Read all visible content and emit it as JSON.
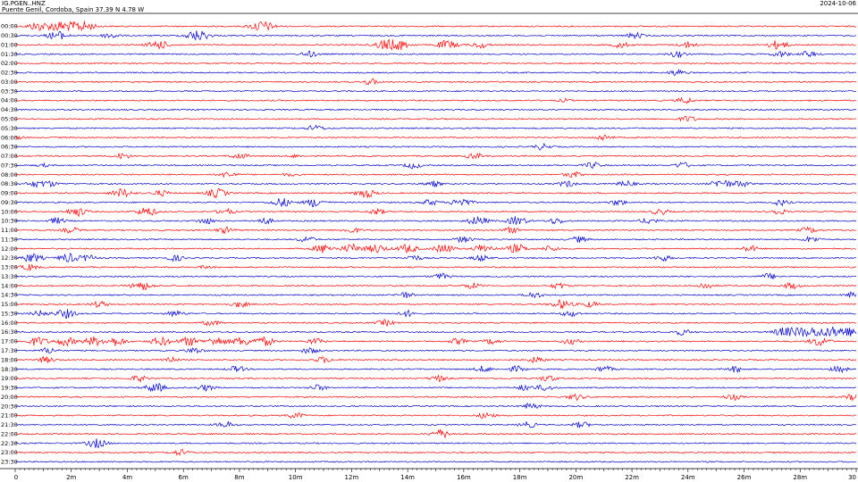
{
  "header": {
    "station": "IG.PGEN..HNZ",
    "location": "Puente Genil, Cordoba, Spain  37.39 N 4.78 W",
    "date": "2024-10-06"
  },
  "chart_data": {
    "type": "line",
    "title": "IG.PGEN..HNZ",
    "xlabel": "",
    "ylabel": "",
    "x_unit": "minutes",
    "xlim": [
      0,
      30
    ],
    "x_ticks": [
      "0",
      "2m",
      "4m",
      "6m",
      "8m",
      "10m",
      "12m",
      "14m",
      "16m",
      "18m",
      "20m",
      "22m",
      "24m",
      "26m",
      "28m",
      "30"
    ],
    "row_labels": [
      "00:00",
      "00:30",
      "01:00",
      "01:30",
      "02:00",
      "02:30",
      "03:00",
      "03:30",
      "04:00",
      "04:30",
      "05:00",
      "05:30",
      "06:00",
      "06:30",
      "07:00",
      "07:30",
      "08:00",
      "08:30",
      "09:00",
      "09:30",
      "10:00",
      "10:30",
      "11:00",
      "11:30",
      "12:00",
      "12:30",
      "13:00",
      "13:30",
      "14:00",
      "14:30",
      "15:00",
      "15:30",
      "16:00",
      "16:30",
      "17:00",
      "17:30",
      "18:00",
      "18:30",
      "19:00",
      "19:30",
      "20:00",
      "20:30",
      "21:00",
      "21:30",
      "22:00",
      "22:30",
      "23:00",
      "23:30"
    ],
    "colors": [
      "#ff0000",
      "#0000cc"
    ],
    "grid": false,
    "events": [
      [
        [
          0.8,
          3
        ],
        [
          1.6,
          4
        ],
        [
          2.4,
          4
        ],
        [
          8.8,
          4
        ]
      ],
      [
        [
          1.5,
          3
        ],
        [
          3.4,
          2
        ],
        [
          6.5,
          4
        ],
        [
          22.1,
          2
        ]
      ],
      [
        [
          5.1,
          3
        ],
        [
          13.2,
          3
        ],
        [
          13.6,
          4
        ],
        [
          15.4,
          3
        ],
        [
          16.6,
          2
        ],
        [
          21.6,
          2
        ],
        [
          24.0,
          2
        ],
        [
          27.2,
          3
        ]
      ],
      [
        [
          10.5,
          2
        ],
        [
          23.6,
          2
        ],
        [
          27.3,
          2
        ],
        [
          28.3,
          2
        ]
      ],
      [],
      [
        [
          23.6,
          2
        ]
      ],
      [
        [
          12.7,
          2
        ]
      ],
      [],
      [
        [
          23.9,
          2
        ],
        [
          19.6,
          1
        ]
      ],
      [],
      [
        [
          24.0,
          2
        ]
      ],
      [
        [
          10.7,
          2
        ]
      ],
      [
        [
          21.0,
          2
        ],
        [
          0.1,
          1
        ]
      ],
      [
        [
          18.8,
          2
        ]
      ],
      [
        [
          3.8,
          2
        ],
        [
          8.0,
          2
        ],
        [
          10.0,
          1
        ],
        [
          16.4,
          2
        ]
      ],
      [
        [
          14.2,
          2
        ],
        [
          20.6,
          2
        ],
        [
          23.8,
          2
        ],
        [
          1.0,
          1
        ]
      ],
      [
        [
          7.6,
          2
        ],
        [
          19.9,
          2
        ],
        [
          9.8,
          1
        ]
      ],
      [
        [
          0.7,
          2
        ],
        [
          1.2,
          2
        ],
        [
          14.9,
          2
        ],
        [
          19.7,
          2
        ],
        [
          21.8,
          2
        ],
        [
          25.2,
          3
        ],
        [
          25.9,
          2
        ]
      ],
      [
        [
          3.8,
          3
        ],
        [
          5.2,
          2
        ],
        [
          7.2,
          3
        ],
        [
          12.5,
          3
        ]
      ],
      [
        [
          9.5,
          3
        ],
        [
          10.7,
          3
        ],
        [
          14.8,
          2
        ],
        [
          15.9,
          3
        ],
        [
          21.5,
          2
        ],
        [
          27.3,
          2
        ]
      ],
      [
        [
          2.2,
          3
        ],
        [
          4.7,
          3
        ],
        [
          7.5,
          2
        ],
        [
          12.9,
          2
        ],
        [
          23.0,
          2
        ],
        [
          27.2,
          2
        ]
      ],
      [
        [
          1.5,
          2
        ],
        [
          6.8,
          2
        ],
        [
          8.9,
          2
        ],
        [
          16.5,
          3
        ],
        [
          17.9,
          3
        ],
        [
          19.3,
          2
        ],
        [
          22.6,
          2
        ]
      ],
      [
        [
          2.0,
          2
        ],
        [
          7.5,
          2
        ],
        [
          12.0,
          2
        ],
        [
          17.7,
          2
        ],
        [
          28.3,
          2
        ]
      ],
      [
        [
          10.4,
          2
        ],
        [
          16.0,
          2
        ],
        [
          20.1,
          2
        ],
        [
          28.4,
          2
        ]
      ],
      [
        [
          11.0,
          3
        ],
        [
          12.0,
          3
        ],
        [
          12.9,
          3
        ],
        [
          14.0,
          3
        ],
        [
          15.3,
          3
        ],
        [
          16.7,
          3
        ],
        [
          17.9,
          3
        ],
        [
          19.1,
          2
        ],
        [
          26.2,
          2
        ]
      ],
      [
        [
          0.6,
          3
        ],
        [
          1.9,
          3
        ],
        [
          2.6,
          2
        ],
        [
          5.7,
          2
        ],
        [
          14.2,
          2
        ],
        [
          16.6,
          2
        ],
        [
          23.1,
          2
        ]
      ],
      [
        [
          0.5,
          2
        ],
        [
          6.8,
          1
        ]
      ],
      [
        [
          15.2,
          2
        ],
        [
          26.9,
          2
        ]
      ],
      [
        [
          4.5,
          3
        ],
        [
          16.3,
          2
        ],
        [
          19.4,
          2
        ],
        [
          24.6,
          2
        ],
        [
          27.7,
          2
        ]
      ],
      [
        [
          13.9,
          2
        ],
        [
          18.5,
          2
        ],
        [
          29.9,
          2
        ]
      ],
      [
        [
          3.0,
          2
        ],
        [
          8.0,
          2
        ],
        [
          19.5,
          3
        ],
        [
          20.5,
          2
        ]
      ],
      [
        [
          0.9,
          2
        ],
        [
          1.8,
          3
        ],
        [
          5.7,
          2
        ],
        [
          14.0,
          2
        ],
        [
          19.8,
          2
        ]
      ],
      [
        [
          7.0,
          2
        ],
        [
          13.2,
          2
        ]
      ],
      [
        [
          23.8,
          2
        ],
        [
          27.4,
          3
        ],
        [
          28.0,
          3
        ],
        [
          28.6,
          3
        ],
        [
          29.2,
          3
        ],
        [
          29.7,
          3
        ]
      ],
      [
        [
          0.8,
          3
        ],
        [
          1.8,
          3
        ],
        [
          2.8,
          3
        ],
        [
          3.6,
          3
        ],
        [
          5.2,
          3
        ],
        [
          6.2,
          3
        ],
        [
          7.2,
          3
        ],
        [
          8.1,
          3
        ],
        [
          8.9,
          3
        ],
        [
          10.7,
          2
        ],
        [
          15.8,
          2
        ],
        [
          17.0,
          2
        ],
        [
          19.8,
          2
        ],
        [
          28.7,
          3
        ]
      ],
      [
        [
          1.2,
          2
        ],
        [
          6.4,
          2
        ],
        [
          10.5,
          2
        ]
      ],
      [
        [
          1.1,
          2
        ],
        [
          5.5,
          2
        ],
        [
          11.0,
          2
        ],
        [
          18.6,
          2
        ]
      ],
      [
        [
          7.9,
          2
        ],
        [
          16.7,
          2
        ],
        [
          17.9,
          2
        ],
        [
          21.0,
          2
        ],
        [
          25.7,
          2
        ],
        [
          29.4,
          2
        ]
      ],
      [
        [
          4.4,
          2
        ],
        [
          15.1,
          2
        ],
        [
          19.0,
          2
        ]
      ],
      [
        [
          5.0,
          3
        ],
        [
          6.8,
          2
        ],
        [
          10.8,
          2
        ],
        [
          18.2,
          2
        ],
        [
          18.9,
          2
        ]
      ],
      [
        [
          20.0,
          2
        ],
        [
          25.6,
          2
        ],
        [
          29.9,
          2
        ]
      ],
      [
        [
          18.4,
          2
        ]
      ],
      [
        [
          10.0,
          2
        ],
        [
          16.8,
          2
        ]
      ],
      [
        [
          7.5,
          2
        ],
        [
          18.3,
          2
        ],
        [
          20.2,
          2
        ]
      ],
      [
        [
          15.2,
          3
        ]
      ],
      [
        [
          2.9,
          3
        ]
      ],
      [
        [
          5.9,
          2
        ]
      ],
      []
    ]
  }
}
